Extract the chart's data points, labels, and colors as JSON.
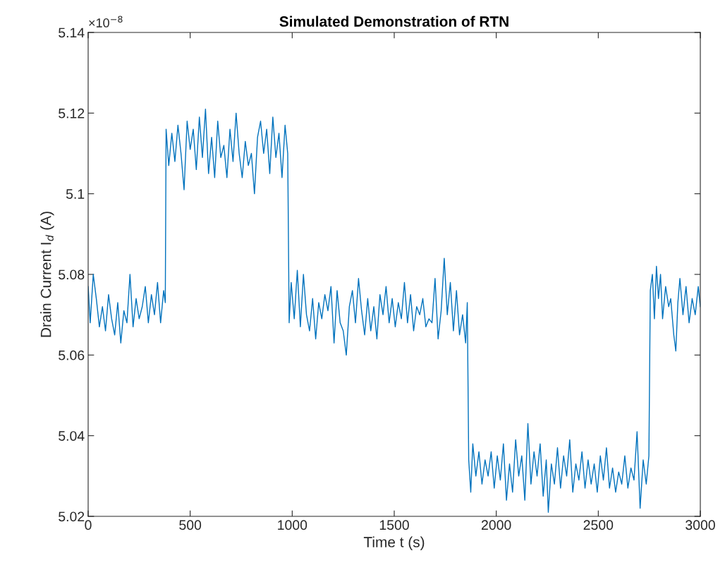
{
  "chart_data": {
    "type": "line",
    "title": "Simulated Demonstration of RTN",
    "xlabel": "Time t (s)",
    "ylabel": "Drain Current I$_{d}$ (A)",
    "annotations": [
      "×10$^{−8}$"
    ],
    "xlim": [
      0,
      3000
    ],
    "xticks": [
      0,
      500,
      1000,
      1500,
      2000,
      2500,
      3000
    ],
    "ylim": [
      5.02,
      5.14
    ],
    "yticks": [
      {
        "value": 5.02,
        "label": "5.02"
      },
      {
        "value": 5.04,
        "label": "5.04"
      },
      {
        "value": 5.06,
        "label": "5.06"
      },
      {
        "value": 5.08,
        "label": "5.08"
      },
      {
        "value": 5.1,
        "label": "5.1"
      },
      {
        "value": 5.12,
        "label": "5.12"
      },
      {
        "value": 5.14,
        "label": "5.14"
      }
    ],
    "grid": false,
    "marker": "none",
    "line_style": "solid",
    "series": [
      {
        "color": "#0072bd",
        "x": [
          0,
          10,
          25,
          40,
          55,
          70,
          85,
          100,
          115,
          130,
          145,
          160,
          175,
          190,
          205,
          220,
          235,
          250,
          265,
          280,
          295,
          310,
          325,
          340,
          355,
          370,
          378,
          382,
          395,
          410,
          425,
          440,
          455,
          470,
          485,
          500,
          515,
          530,
          545,
          560,
          575,
          590,
          605,
          620,
          635,
          650,
          665,
          680,
          695,
          710,
          725,
          740,
          755,
          770,
          785,
          800,
          815,
          830,
          845,
          860,
          875,
          890,
          905,
          920,
          935,
          950,
          965,
          978,
          985,
          995,
          1010,
          1025,
          1040,
          1055,
          1070,
          1085,
          1100,
          1115,
          1130,
          1145,
          1160,
          1175,
          1190,
          1205,
          1220,
          1235,
          1250,
          1265,
          1280,
          1295,
          1310,
          1325,
          1340,
          1355,
          1370,
          1385,
          1400,
          1415,
          1430,
          1445,
          1460,
          1475,
          1490,
          1505,
          1520,
          1535,
          1550,
          1565,
          1580,
          1595,
          1610,
          1625,
          1640,
          1655,
          1670,
          1685,
          1700,
          1715,
          1730,
          1745,
          1760,
          1775,
          1790,
          1805,
          1820,
          1835,
          1850,
          1858,
          1865,
          1875,
          1885,
          1900,
          1915,
          1930,
          1945,
          1960,
          1975,
          1990,
          2005,
          2020,
          2035,
          2050,
          2065,
          2080,
          2095,
          2110,
          2125,
          2140,
          2155,
          2170,
          2185,
          2200,
          2215,
          2230,
          2245,
          2255,
          2270,
          2285,
          2300,
          2315,
          2330,
          2345,
          2360,
          2375,
          2390,
          2405,
          2420,
          2435,
          2450,
          2465,
          2480,
          2495,
          2510,
          2525,
          2540,
          2555,
          2570,
          2585,
          2600,
          2615,
          2630,
          2645,
          2660,
          2675,
          2690,
          2705,
          2720,
          2735,
          2748,
          2755,
          2765,
          2775,
          2785,
          2795,
          2805,
          2815,
          2830,
          2845,
          2855,
          2870,
          2880,
          2890,
          2900,
          2915,
          2930,
          2945,
          2960,
          2975,
          2990,
          3000
        ],
        "values": [
          5.077,
          5.068,
          5.08,
          5.074,
          5.067,
          5.072,
          5.066,
          5.075,
          5.069,
          5.065,
          5.073,
          5.063,
          5.071,
          5.068,
          5.08,
          5.067,
          5.074,
          5.069,
          5.072,
          5.077,
          5.068,
          5.075,
          5.07,
          5.078,
          5.068,
          5.076,
          5.073,
          5.116,
          5.107,
          5.115,
          5.108,
          5.117,
          5.11,
          5.101,
          5.118,
          5.111,
          5.116,
          5.106,
          5.119,
          5.109,
          5.121,
          5.105,
          5.114,
          5.104,
          5.118,
          5.109,
          5.112,
          5.104,
          5.116,
          5.108,
          5.12,
          5.11,
          5.104,
          5.113,
          5.107,
          5.11,
          5.1,
          5.114,
          5.118,
          5.11,
          5.116,
          5.105,
          5.119,
          5.109,
          5.115,
          5.104,
          5.117,
          5.11,
          5.068,
          5.078,
          5.069,
          5.081,
          5.067,
          5.08,
          5.07,
          5.066,
          5.074,
          5.064,
          5.073,
          5.069,
          5.075,
          5.071,
          5.077,
          5.063,
          5.076,
          5.068,
          5.066,
          5.06,
          5.072,
          5.076,
          5.068,
          5.079,
          5.071,
          5.065,
          5.074,
          5.066,
          5.072,
          5.064,
          5.075,
          5.07,
          5.077,
          5.068,
          5.074,
          5.067,
          5.073,
          5.069,
          5.078,
          5.068,
          5.075,
          5.066,
          5.072,
          5.07,
          5.074,
          5.067,
          5.069,
          5.068,
          5.079,
          5.064,
          5.071,
          5.084,
          5.07,
          5.078,
          5.066,
          5.076,
          5.065,
          5.07,
          5.063,
          5.073,
          5.034,
          5.026,
          5.038,
          5.03,
          5.036,
          5.028,
          5.034,
          5.03,
          5.036,
          5.027,
          5.035,
          5.029,
          5.038,
          5.024,
          5.033,
          5.026,
          5.039,
          5.03,
          5.035,
          5.024,
          5.043,
          5.028,
          5.036,
          5.03,
          5.038,
          5.025,
          5.034,
          5.021,
          5.033,
          5.028,
          5.037,
          5.027,
          5.035,
          5.03,
          5.039,
          5.026,
          5.033,
          5.029,
          5.036,
          5.027,
          5.034,
          5.028,
          5.033,
          5.026,
          5.035,
          5.029,
          5.037,
          5.027,
          5.032,
          5.026,
          5.031,
          5.028,
          5.035,
          5.027,
          5.032,
          5.029,
          5.041,
          5.022,
          5.034,
          5.028,
          5.035,
          5.076,
          5.08,
          5.069,
          5.082,
          5.074,
          5.08,
          5.069,
          5.077,
          5.072,
          5.074,
          5.065,
          5.061,
          5.073,
          5.079,
          5.07,
          5.077,
          5.068,
          5.074,
          5.07,
          5.077,
          5.072
        ]
      }
    ]
  }
}
